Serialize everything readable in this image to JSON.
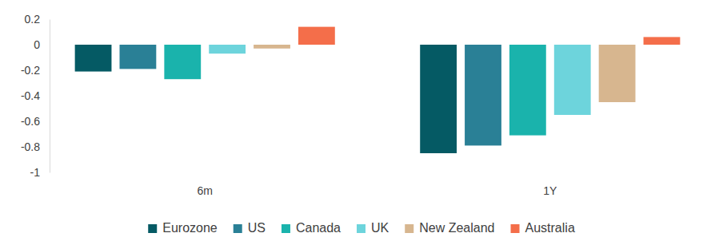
{
  "chart_data": {
    "type": "bar",
    "categories": [
      "6m",
      "1Y"
    ],
    "series": [
      {
        "name": "Eurozone",
        "color": "#055a64",
        "values": [
          -0.21,
          -0.85
        ]
      },
      {
        "name": "US",
        "color": "#2a8096",
        "values": [
          -0.19,
          -0.79
        ]
      },
      {
        "name": "Canada",
        "color": "#1ab3ac",
        "values": [
          -0.27,
          -0.71
        ]
      },
      {
        "name": "UK",
        "color": "#6dd4dc",
        "values": [
          -0.07,
          -0.55
        ]
      },
      {
        "name": "New Zealand",
        "color": "#d7b68f",
        "values": [
          -0.03,
          -0.45
        ]
      },
      {
        "name": "Australia",
        "color": "#f46e4a",
        "values": [
          0.14,
          0.06
        ]
      }
    ],
    "ylim": [
      -1,
      0.2
    ],
    "yticks": [
      -1,
      -0.8,
      -0.6,
      -0.4,
      -0.2,
      0,
      0.2
    ],
    "grid": false,
    "legend": "bottom"
  }
}
